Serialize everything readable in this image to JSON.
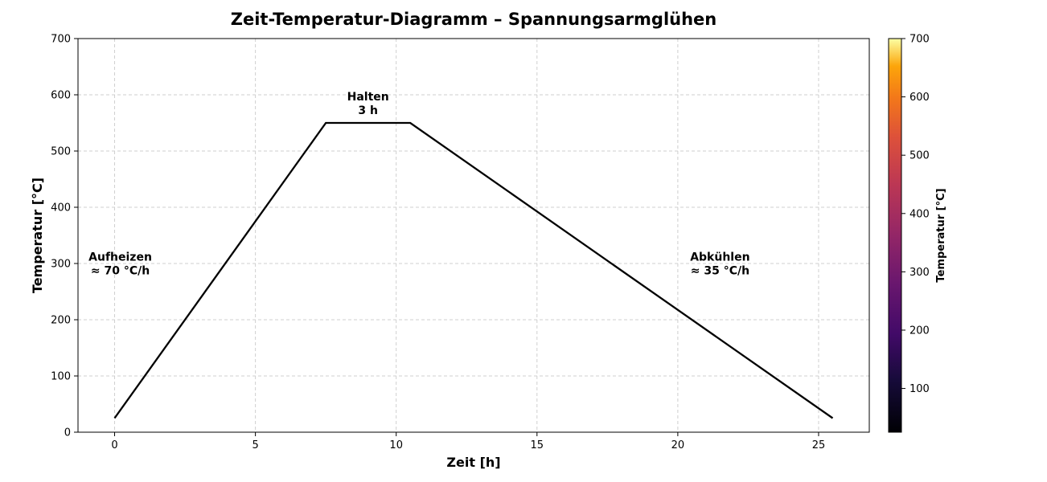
{
  "chart_data": {
    "type": "line",
    "title": "Zeit-Temperatur-Diagramm – Spannungsarmglühen",
    "xlabel": "Zeit [h]",
    "ylabel": "Temperatur [°C]",
    "xlim": [
      -1.3,
      26.8
    ],
    "ylim": [
      0,
      700
    ],
    "xticks": [
      0,
      5,
      10,
      15,
      20,
      25
    ],
    "yticks": [
      0,
      100,
      200,
      300,
      400,
      500,
      600,
      700
    ],
    "grid": true,
    "series": [
      {
        "color": "#000000",
        "x": [
          0,
          7.5,
          10.5,
          25.5
        ],
        "y": [
          25,
          550,
          550,
          25
        ]
      }
    ],
    "annotations": [
      {
        "lines": [
          "Aufheizen",
          "≈ 70 °C/h"
        ],
        "x": 0.2,
        "y": 300
      },
      {
        "lines": [
          "Halten",
          "3 h"
        ],
        "x": 9.0,
        "y": 585
      },
      {
        "lines": [
          "Abkühlen",
          "≈ 35 °C/h"
        ],
        "x": 21.5,
        "y": 300
      }
    ],
    "colorbar": {
      "label": "Temperatur [°C]",
      "colormap": "inferno",
      "range": [
        25,
        700
      ],
      "ticks": [
        100,
        200,
        300,
        400,
        500,
        600,
        700
      ]
    }
  }
}
